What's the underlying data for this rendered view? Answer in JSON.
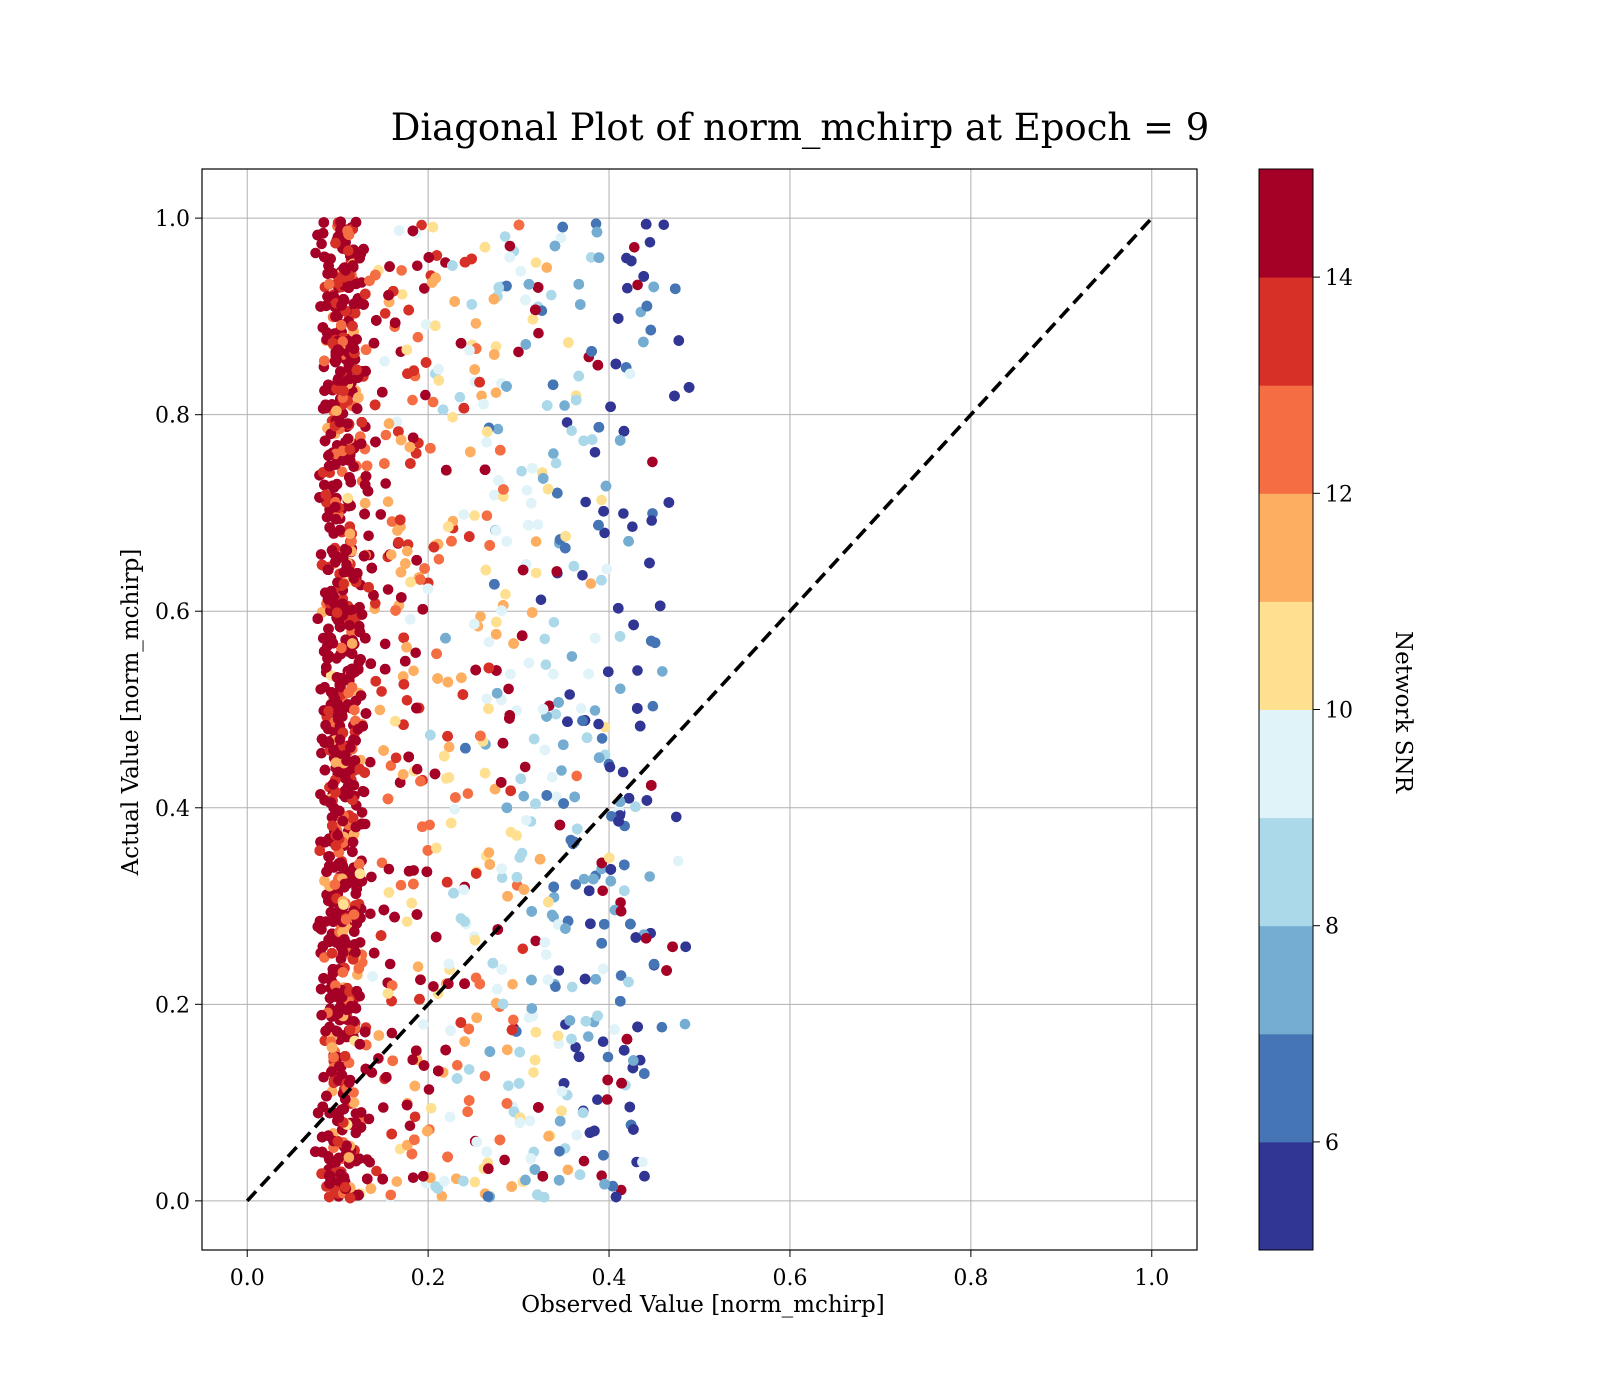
{
  "chart_data": {
    "type": "scatter",
    "title": "Diagonal Plot of norm_mchirp at Epoch = 9",
    "xlabel": "Observed Value [norm_mchirp]",
    "ylabel": "Actual Value [norm_mchirp]",
    "xlim": [
      -0.05,
      1.05
    ],
    "ylim": [
      -0.05,
      1.05
    ],
    "xticks": [
      "0.0",
      "0.2",
      "0.4",
      "0.6",
      "0.8",
      "1.0"
    ],
    "yticks": [
      "0.0",
      "0.2",
      "0.4",
      "0.6",
      "0.8",
      "1.0"
    ],
    "grid": true,
    "reference_line": {
      "x": [
        0.0,
        1.0
      ],
      "y": [
        0.0,
        1.0
      ],
      "style": "dashed",
      "color": "#000000"
    },
    "scatter_summary": {
      "x_range": [
        0.07,
        0.49
      ],
      "y_range": [
        0.0,
        1.0
      ],
      "note_trend": "higher SNR at low observed values, lower SNR toward observed ≈ 0.45"
    },
    "colorbar": {
      "label": "Network SNR",
      "range": [
        5,
        15
      ],
      "ticks": [
        "6",
        "8",
        "10",
        "12",
        "14"
      ],
      "colors": [
        "#313695",
        "#4575b4",
        "#74add1",
        "#abd9e9",
        "#e0f3f8",
        "#fee090",
        "#fdae61",
        "#f46d43",
        "#d73027",
        "#a50026"
      ]
    }
  }
}
